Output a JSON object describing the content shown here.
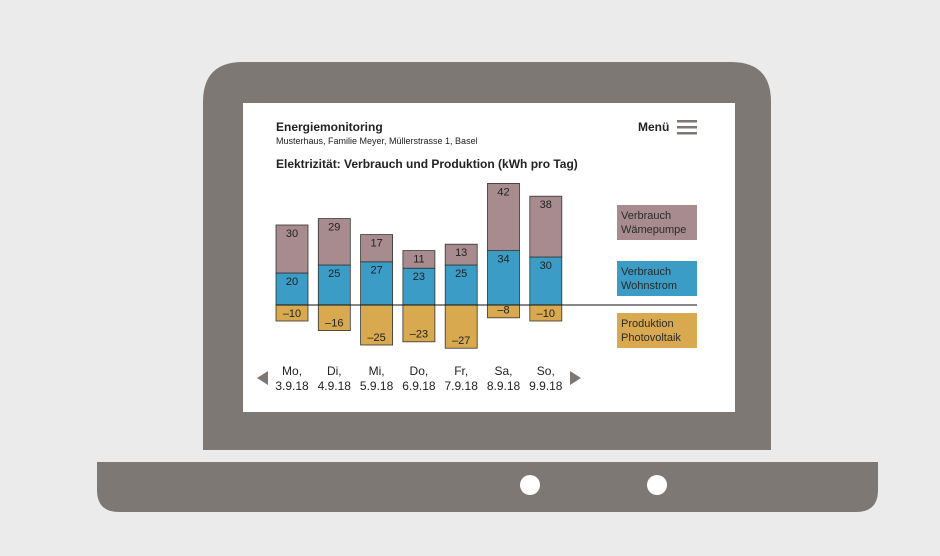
{
  "header": {
    "title": "Energiemonitoring",
    "subtitle": "Musterhaus, Familie Meyer, Müllerstrasse 1, Basel",
    "menu": "Menü"
  },
  "chart_data": {
    "type": "bar",
    "stacked": true,
    "title": "Elektrizität: Verbrauch und Produktion (kWh pro Tag)",
    "categories": [
      "Mo, 3.9.18",
      "Di, 4.9.18",
      "Mi, 5.9.18",
      "Do, 6.9.18",
      "Fr, 7.9.18",
      "Sa, 8.9.18",
      "So, 9.9.18"
    ],
    "series": [
      {
        "name": "Verbrauch Wohnstrom",
        "color": "#3b9cc6",
        "values": [
          20,
          25,
          27,
          23,
          25,
          34,
          30
        ]
      },
      {
        "name": "Verbrauch Wämepumpe",
        "color": "#a88b8e",
        "values": [
          30,
          29,
          17,
          11,
          13,
          42,
          38
        ]
      },
      {
        "name": "Produktion Photovoltaik",
        "color": "#d9a94f",
        "values": [
          -10,
          -16,
          -25,
          -23,
          -27,
          -8,
          -10
        ],
        "value_labels": [
          "–10",
          "–16",
          "–25",
          "–23",
          "–27",
          "–8",
          "–10"
        ]
      }
    ],
    "legend_order": [
      1,
      0,
      2
    ]
  }
}
